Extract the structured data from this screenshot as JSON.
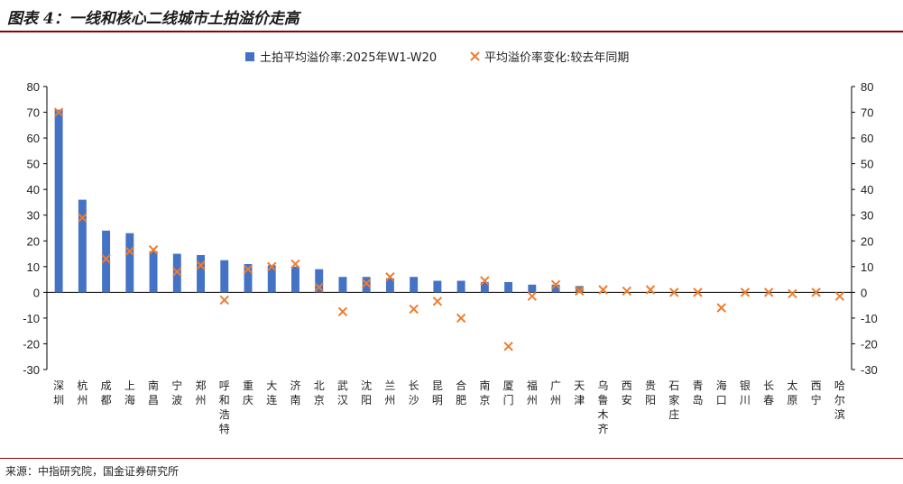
{
  "header": {
    "title": "图表 4：一线和核心二线城市土拍溢价走高"
  },
  "footer": {
    "source": "来源：中指研究院，国金证券研究所"
  },
  "colors": {
    "bar": "#4472C4",
    "marker": "#ED7D31",
    "rule": "#8b0000"
  },
  "chart_data": {
    "type": "bar",
    "title": "",
    "ylim": [
      -30,
      80
    ],
    "yticks": [
      "80",
      "70",
      "60",
      "50",
      "40",
      "30",
      "20",
      "10",
      "0",
      "-10",
      "-20",
      "-30"
    ],
    "y2ticks": [
      "80",
      "70",
      "60",
      "50",
      "40",
      "30",
      "20",
      "10",
      "0",
      "-10",
      "-20",
      "-30"
    ],
    "legend_position": "top-center",
    "categories": [
      "深圳",
      "杭州",
      "成都",
      "上海",
      "南昌",
      "宁波",
      "郑州",
      "呼和浩特",
      "重庆",
      "大连",
      "济南",
      "北京",
      "武汉",
      "沈阳",
      "兰州",
      "长沙",
      "昆明",
      "合肥",
      "南京",
      "厦门",
      "福州",
      "广州",
      "天津",
      "乌鲁木齐",
      "西安",
      "贵阳",
      "石家庄",
      "青岛",
      "海口",
      "银川",
      "长春",
      "太原",
      "西宁",
      "哈尔滨"
    ],
    "series": [
      {
        "name": "土拍平均溢价率:2025年W1-W20",
        "kind": "bar",
        "values": [
          71,
          36,
          24,
          23,
          16,
          15,
          14.5,
          12.5,
          11,
          10.5,
          10,
          9,
          6,
          6,
          5.5,
          6,
          4.5,
          4.5,
          4,
          4,
          3,
          3,
          2.5,
          0,
          0,
          0,
          0,
          0,
          0,
          0,
          0,
          0,
          0,
          0
        ]
      },
      {
        "name": "平均溢价率变化:较去年同期",
        "kind": "marker",
        "values": [
          70,
          29,
          13,
          16,
          16.5,
          8,
          10.5,
          -3,
          9,
          10,
          11,
          2,
          -7.5,
          3.5,
          6,
          -6.5,
          -3.5,
          -10,
          4.5,
          -21,
          -1.5,
          3,
          0.5,
          1,
          0.5,
          1,
          0,
          0,
          -6,
          0,
          0,
          -0.5,
          0,
          -1.5
        ]
      }
    ]
  }
}
